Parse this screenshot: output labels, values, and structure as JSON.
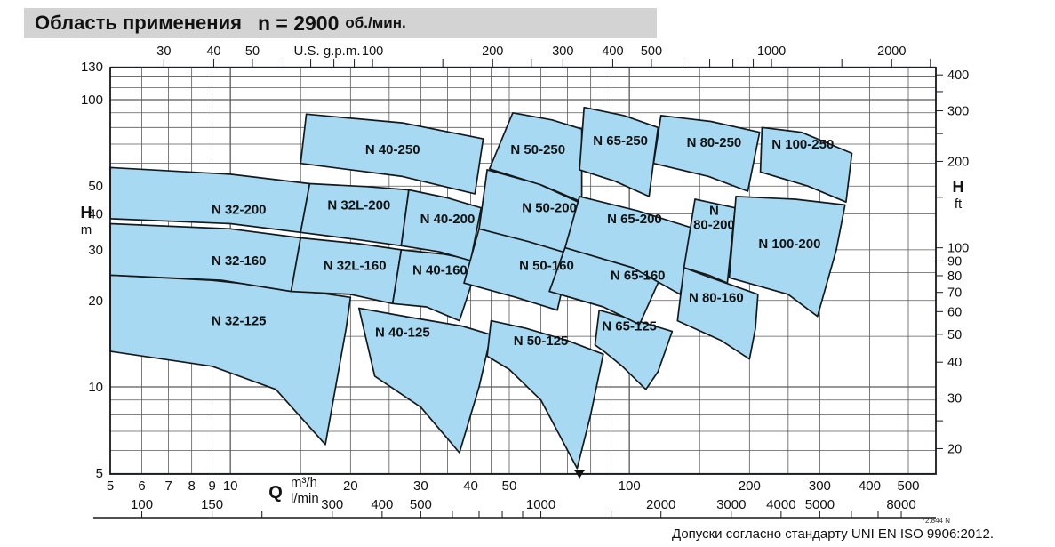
{
  "title": {
    "main": "Область применения",
    "speed": "n = 2900",
    "unit": "об./мин."
  },
  "footer": {
    "standard": "Допуски согласно стандарту UNI EN ISO 9906:2012.",
    "doc_number": "72.844 N"
  },
  "colors": {
    "region_fill": "#a7daf2",
    "region_stroke": "#15191c",
    "grid": "#5a5a5a",
    "frame": "#15191c",
    "title_bar_bg": "#d3d3d3",
    "text": "#111111"
  },
  "chart_data": {
    "type": "area",
    "title": "Область применения n = 2900 об./мин.",
    "scale": "log-log",
    "axes": {
      "bottom_m3h": {
        "title_letter": "Q",
        "unit_top": "m³/h",
        "unit_bottom": "l/min",
        "range": [
          5,
          500
        ],
        "labeled_ticks": [
          5,
          6,
          7,
          8,
          9,
          10,
          20,
          30,
          40,
          50,
          100,
          200,
          300,
          400,
          500
        ]
      },
      "bottom_lmin": {
        "unit": "l/min",
        "factor_from_m3h": 16.667,
        "labeled_ticks": [
          100,
          150,
          300,
          400,
          500,
          1000,
          2000,
          3000,
          4000,
          5000,
          8000
        ],
        "minor_ticks": [
          100,
          150,
          200,
          300,
          400,
          500,
          600,
          700,
          800,
          900,
          1000,
          1500,
          2000,
          3000,
          4000,
          5000,
          6000,
          7000,
          8000
        ]
      },
      "top_gpm": {
        "unit": "U.S. g.p.m.",
        "factor_from_m3h": 4.403,
        "labeled_ticks": [
          30,
          40,
          50,
          100,
          200,
          300,
          400,
          500,
          1000,
          2000
        ],
        "minor_ticks": [
          30,
          40,
          50,
          60,
          70,
          80,
          90,
          100,
          150,
          200,
          250,
          300,
          400,
          500,
          600,
          700,
          800,
          900,
          1000,
          1500,
          2000,
          2500
        ]
      },
      "left_m": {
        "title_letter": "H",
        "unit": "m",
        "range": [
          5,
          130
        ],
        "labeled_ticks": [
          130,
          100,
          50,
          40,
          30,
          20,
          10,
          5
        ]
      },
      "right_ft": {
        "title_letter": "H",
        "unit": "ft",
        "factor_from_m": 0.3048,
        "labeled_ticks": [
          400,
          300,
          200,
          100,
          90,
          80,
          70,
          60,
          50,
          40,
          30,
          20
        ],
        "minor_ticks": [
          400,
          350,
          300,
          250,
          200,
          150,
          100,
          90,
          80,
          70,
          60,
          50,
          40,
          30,
          25,
          20
        ]
      }
    },
    "grid": {
      "x_m3h": [
        5,
        6,
        7,
        8,
        9,
        10,
        15,
        20,
        25,
        30,
        35,
        40,
        45,
        50,
        60,
        70,
        80,
        90,
        100,
        150,
        200,
        250,
        300,
        400,
        500
      ],
      "y_m": [
        5,
        6,
        7,
        8,
        9,
        10,
        15,
        20,
        25,
        30,
        40,
        50,
        60,
        70,
        80,
        90,
        100,
        110,
        120,
        130
      ]
    },
    "marker_arrow_q_m3h": 75,
    "regions": [
      {
        "id": "n-32-125",
        "label": "N 32-125",
        "label_pos": [
          10.5,
          17
        ],
        "polygon": [
          [
            5,
            24.5
          ],
          [
            9,
            23.5
          ],
          [
            14,
            22
          ],
          [
            20,
            20.5
          ],
          [
            19.5,
            16
          ],
          [
            17.3,
            6.3
          ],
          [
            13,
            9.8
          ],
          [
            9,
            11.8
          ],
          [
            5,
            13.3
          ]
        ]
      },
      {
        "id": "n-32-160",
        "label": "N 32-160",
        "label_pos": [
          10.5,
          27.5
        ],
        "polygon": [
          [
            5,
            37
          ],
          [
            10,
            35.5
          ],
          [
            15,
            33
          ],
          [
            14.2,
            21.5
          ],
          [
            9.5,
            23.5
          ],
          [
            5,
            24.5
          ]
        ]
      },
      {
        "id": "n-32-200",
        "label": "N 32-200",
        "label_pos": [
          10.5,
          41.5
        ],
        "polygon": [
          [
            5,
            58
          ],
          [
            10,
            55
          ],
          [
            15.8,
            51
          ],
          [
            15,
            34.5
          ],
          [
            10,
            37
          ],
          [
            5,
            38.5
          ]
        ]
      },
      {
        "id": "n-32l-160",
        "label": "N 32L-160",
        "label_pos": [
          20.5,
          26.5
        ],
        "polygon": [
          [
            15,
            33
          ],
          [
            21,
            31.5
          ],
          [
            26.8,
            30
          ],
          [
            25.5,
            19.5
          ],
          [
            20,
            21
          ],
          [
            14.2,
            21.5
          ]
        ]
      },
      {
        "id": "n-32l-200",
        "label": "N 32L-200",
        "label_pos": [
          21,
          43
        ],
        "polygon": [
          [
            15.8,
            51
          ],
          [
            22,
            49.8
          ],
          [
            28,
            48.5
          ],
          [
            26.8,
            31
          ],
          [
            21,
            32.5
          ],
          [
            15,
            34.5
          ]
        ]
      },
      {
        "id": "n-40-125",
        "label": "N 40-125",
        "label_pos": [
          27,
          15.5
        ],
        "polygon": [
          [
            21,
            18.8
          ],
          [
            28,
            17.5
          ],
          [
            38,
            16.3
          ],
          [
            45,
            15.2
          ],
          [
            42,
            10
          ],
          [
            37.5,
            5.9
          ],
          [
            30,
            8.5
          ],
          [
            23,
            10.9
          ]
        ]
      },
      {
        "id": "n-40-160",
        "label": "N 40-160",
        "label_pos": [
          33.5,
          25.5
        ],
        "polygon": [
          [
            26.8,
            30
          ],
          [
            34,
            29
          ],
          [
            42,
            27.5
          ],
          [
            37.5,
            17
          ],
          [
            31,
            19
          ],
          [
            25.5,
            19.5
          ]
        ]
      },
      {
        "id": "n-40-200",
        "label": "N 40-200",
        "label_pos": [
          35,
          38.5
        ],
        "polygon": [
          [
            28,
            48.5
          ],
          [
            35,
            45.5
          ],
          [
            42.5,
            42
          ],
          [
            40,
            27.5
          ],
          [
            33.5,
            29.5
          ],
          [
            26.8,
            31
          ]
        ]
      },
      {
        "id": "n-40-250",
        "label": "N 40-250",
        "label_pos": [
          25.5,
          67
        ],
        "polygon": [
          [
            15.5,
            89
          ],
          [
            27,
            83
          ],
          [
            43,
            73
          ],
          [
            41,
            47
          ],
          [
            27,
            54
          ],
          [
            15,
            60
          ]
        ]
      },
      {
        "id": "n-50-125",
        "label": "N 50-125",
        "label_pos": [
          60,
          14.5
        ],
        "polygon": [
          [
            45,
            17
          ],
          [
            55,
            16
          ],
          [
            70,
            14.5
          ],
          [
            86,
            13
          ],
          [
            80,
            8
          ],
          [
            74,
            5.2
          ],
          [
            60,
            9
          ],
          [
            50,
            11.5
          ],
          [
            44,
            12.8
          ]
        ]
      },
      {
        "id": "n-50-160",
        "label": "N 50-160",
        "label_pos": [
          62,
          26.5
        ],
        "polygon": [
          [
            42,
            35.5
          ],
          [
            57,
            32
          ],
          [
            71,
            29
          ],
          [
            66,
            18.5
          ],
          [
            52,
            20.5
          ],
          [
            38.5,
            23
          ]
        ]
      },
      {
        "id": "n-50-200",
        "label": "N 50-200",
        "label_pos": [
          63,
          42
        ],
        "polygon": [
          [
            44,
            57
          ],
          [
            59,
            51
          ],
          [
            74.5,
            44
          ],
          [
            71,
            29
          ],
          [
            56,
            32
          ],
          [
            42,
            35.5
          ]
        ]
      },
      {
        "id": "n-50-250",
        "label": "N 50-250",
        "label_pos": [
          59,
          67
        ],
        "polygon": [
          [
            51,
            90
          ],
          [
            64,
            85
          ],
          [
            76,
            79
          ],
          [
            76,
            44
          ],
          [
            60,
            50.5
          ],
          [
            44.6,
            57.4
          ]
        ]
      },
      {
        "id": "n-65-125",
        "label": "N 65-125",
        "label_pos": [
          100,
          16.3
        ],
        "polygon": [
          [
            84,
            18.5
          ],
          [
            100,
            17.3
          ],
          [
            128,
            15.6
          ],
          [
            118,
            11.3
          ],
          [
            110,
            9.8
          ],
          [
            96,
            11.8
          ],
          [
            87,
            13.2
          ],
          [
            82,
            14
          ]
        ]
      },
      {
        "id": "n-65-160",
        "label": "N 65-160",
        "label_pos": [
          105,
          24.5
        ],
        "polygon": [
          [
            69,
            30.5
          ],
          [
            90,
            28.5
          ],
          [
            122,
            25.5
          ],
          [
            106,
            16.5
          ],
          [
            86,
            19
          ],
          [
            63,
            21.5
          ]
        ]
      },
      {
        "id": "n-65-200",
        "label": "N 65-200",
        "label_pos": [
          103,
          38.5
        ],
        "polygon": [
          [
            75,
            46
          ],
          [
            105,
            41
          ],
          [
            146,
            35.5
          ],
          [
            134,
            21
          ],
          [
            102,
            26
          ],
          [
            69,
            30.5
          ]
        ]
      },
      {
        "id": "n-65-250",
        "label": "N 65-250",
        "label_pos": [
          95,
          72
        ],
        "polygon": [
          [
            77,
            94
          ],
          [
            97,
            88
          ],
          [
            118,
            80
          ],
          [
            112,
            46
          ],
          [
            92,
            52
          ],
          [
            75,
            57
          ]
        ]
      },
      {
        "id": "n-80-160",
        "label": "N 80-160",
        "label_pos": [
          165,
          20.5
        ],
        "polygon": [
          [
            137,
            26
          ],
          [
            160,
            24
          ],
          [
            210,
            21
          ],
          [
            207,
            16
          ],
          [
            200,
            12.5
          ],
          [
            170,
            14.5
          ],
          [
            132,
            17
          ]
        ]
      },
      {
        "id": "n-80-200",
        "label_lines": [
          "N",
          "80-200"
        ],
        "label": "N 80-200",
        "label_pos": [
          163,
          38
        ],
        "polygon": [
          [
            146,
            45
          ],
          [
            164,
            43.5
          ],
          [
            184,
            42
          ],
          [
            176,
            23
          ],
          [
            158,
            24.5
          ],
          [
            137,
            26
          ]
        ]
      },
      {
        "id": "n-80-250",
        "label": "N 80-250",
        "label_pos": [
          163,
          71
        ],
        "polygon": [
          [
            120,
            88
          ],
          [
            160,
            84
          ],
          [
            212,
            77
          ],
          [
            198,
            48
          ],
          [
            158,
            54
          ],
          [
            115,
            60
          ]
        ]
      },
      {
        "id": "n-100-200",
        "label": "N 100-200",
        "label_pos": [
          252,
          31.5
        ],
        "polygon": [
          [
            185,
            46
          ],
          [
            260,
            45
          ],
          [
            347,
            43
          ],
          [
            330,
            30
          ],
          [
            296,
            17.6
          ],
          [
            250,
            21
          ],
          [
            178,
            24
          ]
        ]
      },
      {
        "id": "n-100-250",
        "label": "N 100-250",
        "label_pos": [
          272,
          70
        ],
        "polygon": [
          [
            215,
            80
          ],
          [
            270,
            77
          ],
          [
            361,
            65
          ],
          [
            349,
            44
          ],
          [
            280,
            50
          ],
          [
            213,
            56
          ]
        ]
      }
    ],
    "layout_hints": {
      "x_log_range_m3h": [
        5,
        578
      ],
      "y_log_range_m": [
        5,
        130.2
      ],
      "grid": "on",
      "legend": "none"
    }
  }
}
